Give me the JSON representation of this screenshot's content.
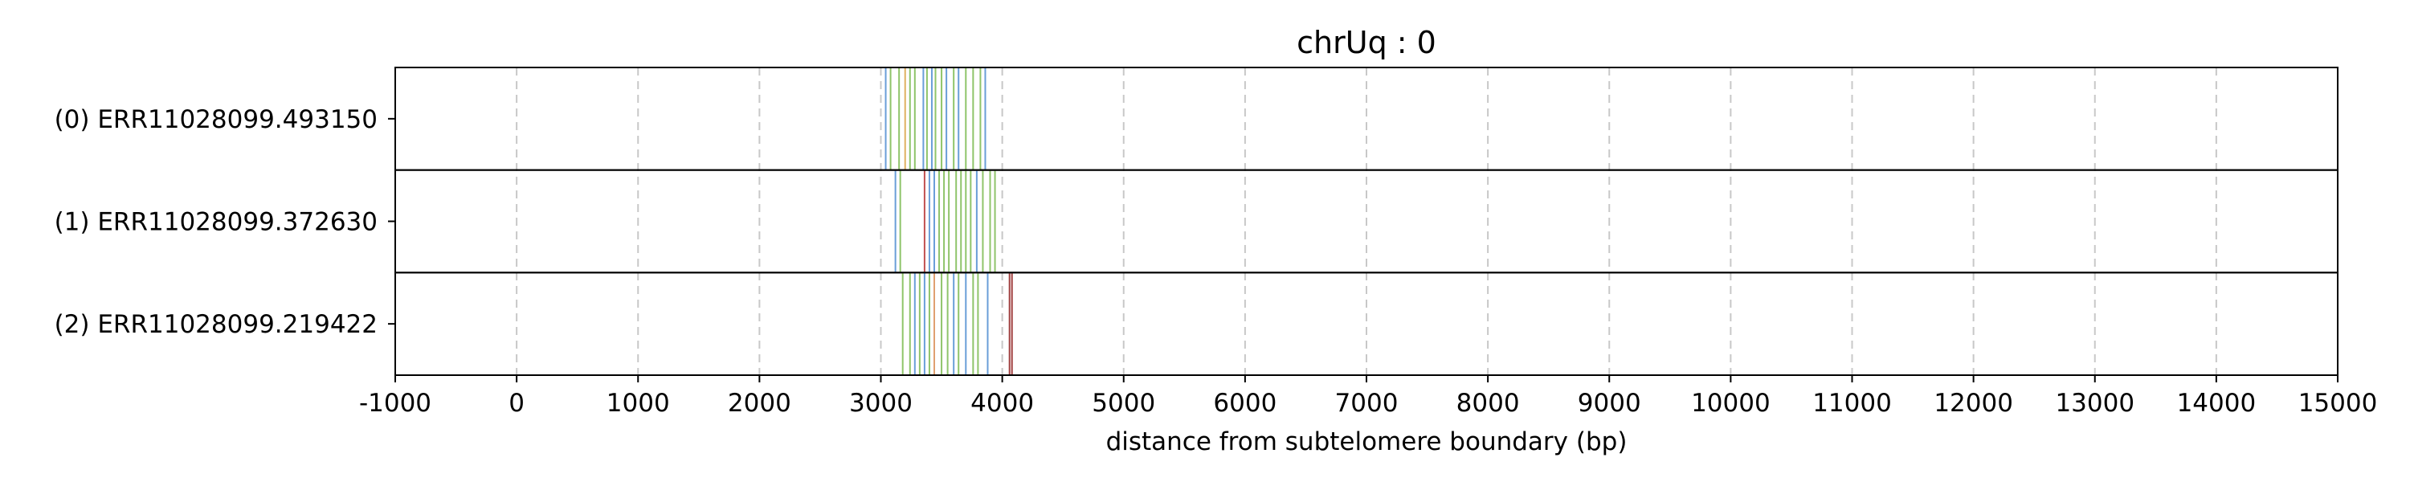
{
  "chart_data": {
    "type": "track",
    "title": "chrUq : 0",
    "xlabel": "distance from subtelomere boundary (bp)",
    "xlim": [
      -1000,
      15000
    ],
    "xticks": [
      "-1000",
      "0",
      "1000",
      "2000",
      "3000",
      "4000",
      "5000",
      "6000",
      "7000",
      "8000",
      "9000",
      "10000",
      "11000",
      "12000",
      "13000",
      "14000",
      "15000"
    ],
    "grid": "vertical dashed",
    "rows": [
      {
        "label": "(0) ERR11028099.493150",
        "marks": [
          {
            "x": 3040,
            "color": "#6a9ed8"
          },
          {
            "x": 3080,
            "color": "#8fc46a"
          },
          {
            "x": 3150,
            "color": "#8fc46a"
          },
          {
            "x": 3200,
            "color": "#e0b060"
          },
          {
            "x": 3240,
            "color": "#8fc46a"
          },
          {
            "x": 3280,
            "color": "#8fc46a"
          },
          {
            "x": 3350,
            "color": "#6a9ed8"
          },
          {
            "x": 3380,
            "color": "#8fc46a"
          },
          {
            "x": 3420,
            "color": "#6a9ed8"
          },
          {
            "x": 3450,
            "color": "#8fc46a"
          },
          {
            "x": 3500,
            "color": "#8fc46a"
          },
          {
            "x": 3540,
            "color": "#6a9ed8"
          },
          {
            "x": 3600,
            "color": "#8fc46a"
          },
          {
            "x": 3640,
            "color": "#6a9ed8"
          },
          {
            "x": 3700,
            "color": "#8fc46a"
          },
          {
            "x": 3760,
            "color": "#8fc46a"
          },
          {
            "x": 3820,
            "color": "#8fc46a"
          },
          {
            "x": 3860,
            "color": "#6a9ed8"
          }
        ]
      },
      {
        "label": "(1) ERR11028099.372630",
        "marks": [
          {
            "x": 3120,
            "color": "#6a9ed8"
          },
          {
            "x": 3160,
            "color": "#8fc46a"
          },
          {
            "x": 3360,
            "color": "#c05050"
          },
          {
            "x": 3400,
            "color": "#6a9ed8"
          },
          {
            "x": 3440,
            "color": "#6a9ed8"
          },
          {
            "x": 3480,
            "color": "#8fc46a"
          },
          {
            "x": 3520,
            "color": "#8fc46a"
          },
          {
            "x": 3560,
            "color": "#8fc46a"
          },
          {
            "x": 3620,
            "color": "#8fc46a"
          },
          {
            "x": 3660,
            "color": "#8fc46a"
          },
          {
            "x": 3700,
            "color": "#8fc46a"
          },
          {
            "x": 3740,
            "color": "#8fc46a"
          },
          {
            "x": 3790,
            "color": "#6a9ed8"
          },
          {
            "x": 3840,
            "color": "#8fc46a"
          },
          {
            "x": 3900,
            "color": "#8fc46a"
          },
          {
            "x": 3940,
            "color": "#8fc46a"
          }
        ]
      },
      {
        "label": "(2) ERR11028099.219422",
        "marks": [
          {
            "x": 3180,
            "color": "#8fc46a"
          },
          {
            "x": 3240,
            "color": "#8fc46a"
          },
          {
            "x": 3280,
            "color": "#6a9ed8"
          },
          {
            "x": 3320,
            "color": "#8fc46a"
          },
          {
            "x": 3360,
            "color": "#6a9ed8"
          },
          {
            "x": 3400,
            "color": "#8fc46a"
          },
          {
            "x": 3440,
            "color": "#e0a070"
          },
          {
            "x": 3500,
            "color": "#8fc46a"
          },
          {
            "x": 3550,
            "color": "#8fc46a"
          },
          {
            "x": 3600,
            "color": "#6a9ed8"
          },
          {
            "x": 3640,
            "color": "#8fc46a"
          },
          {
            "x": 3700,
            "color": "#6a9ed8"
          },
          {
            "x": 3760,
            "color": "#8fc46a"
          },
          {
            "x": 3800,
            "color": "#8fc46a"
          },
          {
            "x": 3880,
            "color": "#6a9ed8"
          },
          {
            "x": 4060,
            "color": "#a04040"
          },
          {
            "x": 4080,
            "color": "#a04040"
          }
        ]
      }
    ]
  }
}
